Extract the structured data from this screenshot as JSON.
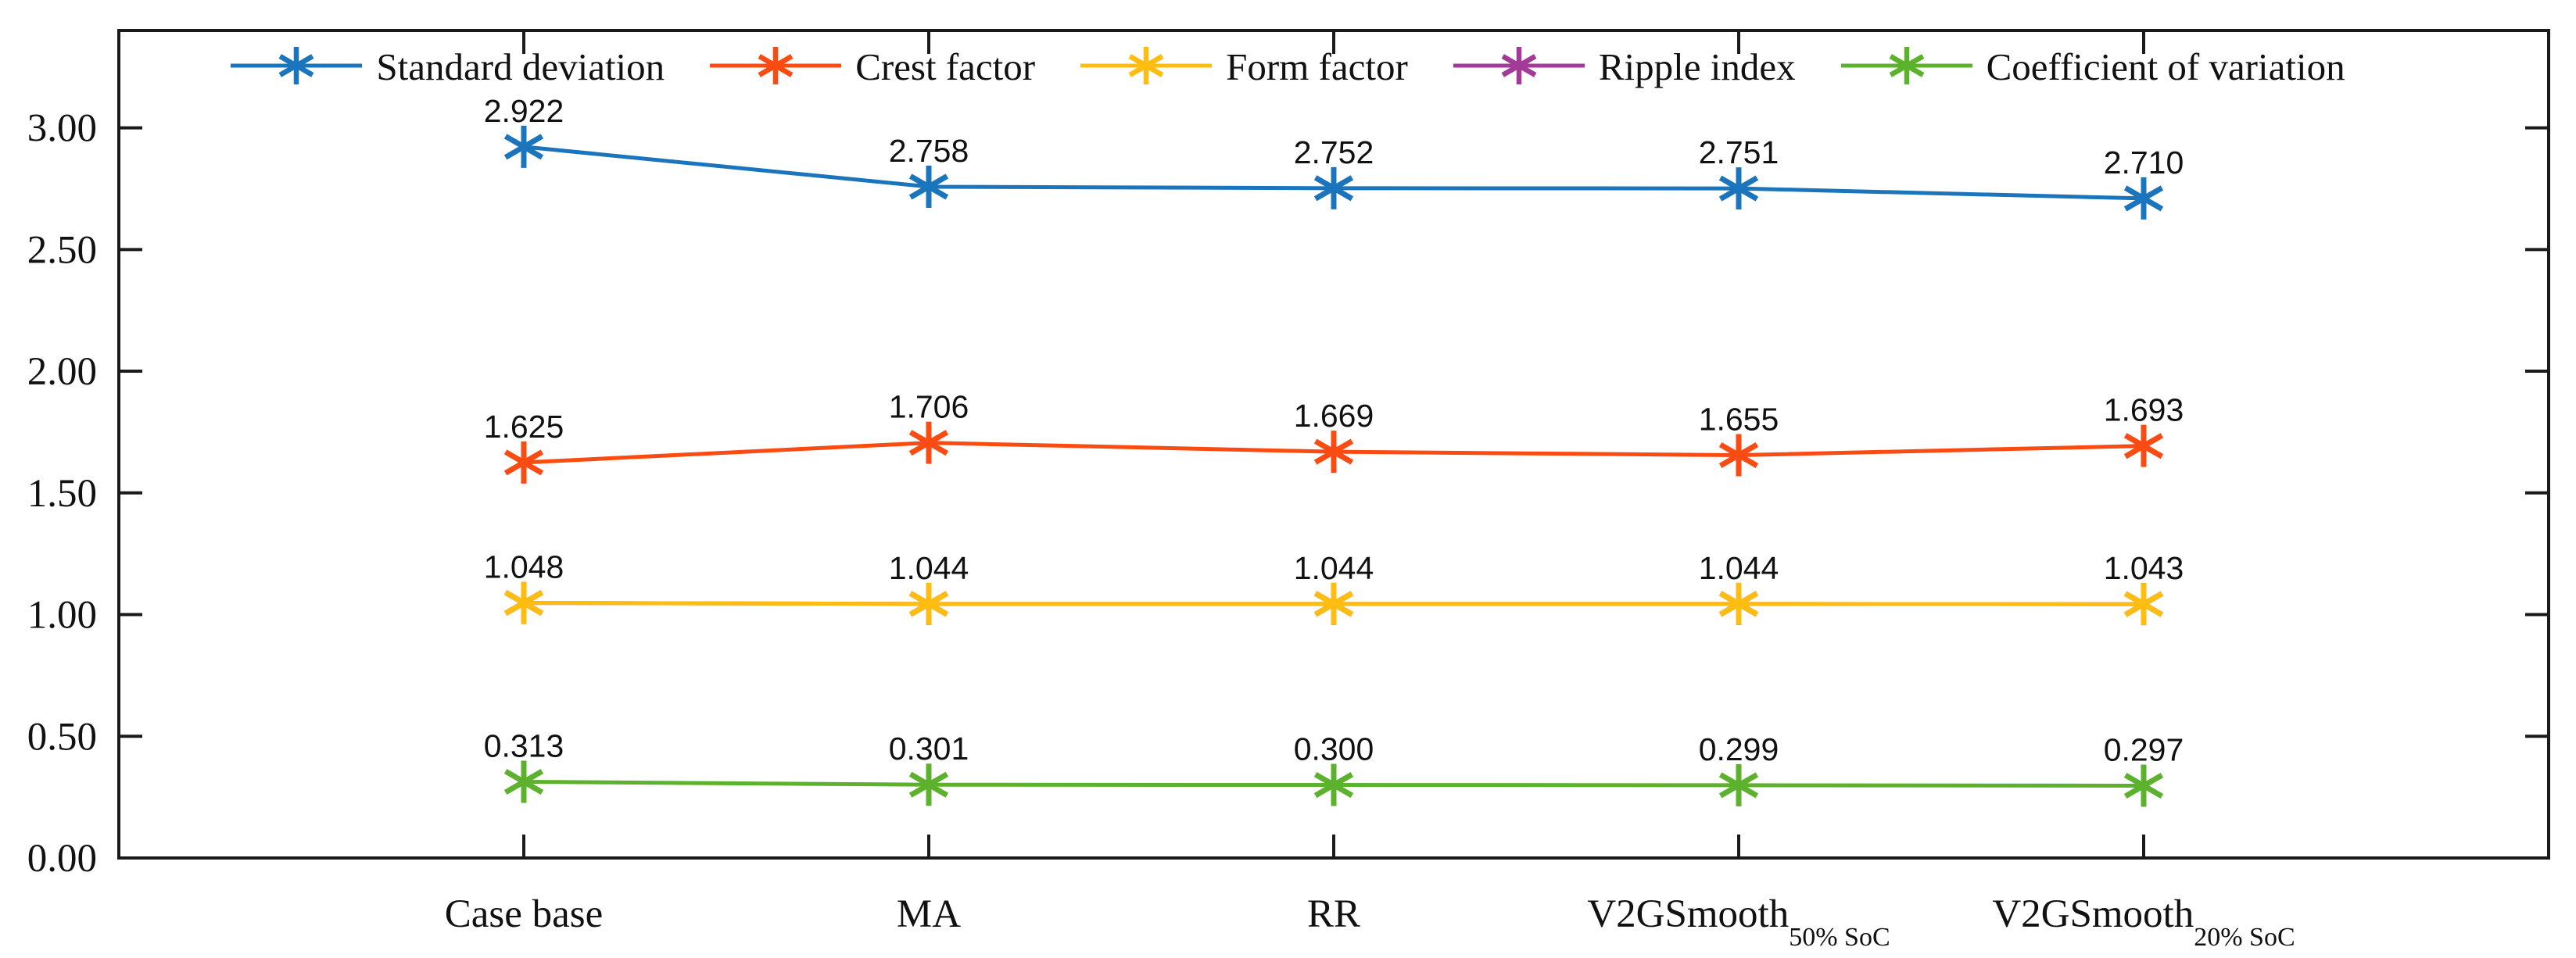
{
  "figure": {
    "background": "#ffffff",
    "axis_color": "#1a1a1a",
    "text_color": "#111111"
  },
  "chart_data": {
    "type": "line",
    "title": "",
    "xlabel": "",
    "ylabel": "",
    "grid": false,
    "legend_position": "top-center-inside",
    "ylim": [
      0,
      3.4
    ],
    "yticks": [
      0,
      0.5,
      1,
      1.5,
      2,
      2.5,
      3
    ],
    "ytick_decimals": 2,
    "point_label_decimals": 3,
    "categories": [
      {
        "main": "Case base",
        "sub": ""
      },
      {
        "main": "MA",
        "sub": ""
      },
      {
        "main": "RR",
        "sub": ""
      },
      {
        "main": "V2GSmooth",
        "sub": "50% SoC"
      },
      {
        "main": "V2GSmooth",
        "sub": "20% SoC"
      }
    ],
    "series": [
      {
        "name": "Standard deviation",
        "color": "#1B75BC",
        "marker": "asterisk",
        "z": 1,
        "labels_visible": true,
        "values": [
          2.922,
          2.758,
          2.752,
          2.751,
          2.71
        ]
      },
      {
        "name": "Crest factor",
        "color": "#FA4B12",
        "marker": "asterisk",
        "z": 1,
        "labels_visible": true,
        "values": [
          1.625,
          1.706,
          1.669,
          1.655,
          1.693
        ]
      },
      {
        "name": "Form factor",
        "color": "#FFBC11",
        "marker": "asterisk",
        "z": 1,
        "labels_visible": true,
        "values": [
          1.048,
          1.044,
          1.044,
          1.044,
          1.043
        ]
      },
      {
        "name": "Ripple index",
        "color": "#A23A97",
        "marker": "asterisk",
        "z": 0,
        "labels_visible": false,
        "values": [
          1.048,
          1.044,
          1.044,
          1.044,
          1.043
        ],
        "note": "line coincides with Form factor and is hidden beneath it"
      },
      {
        "name": "Coefficient of variation",
        "color": "#5CB22D",
        "marker": "asterisk",
        "z": 1,
        "labels_visible": true,
        "values": [
          0.313,
          0.301,
          0.3,
          0.299,
          0.297
        ]
      }
    ]
  }
}
